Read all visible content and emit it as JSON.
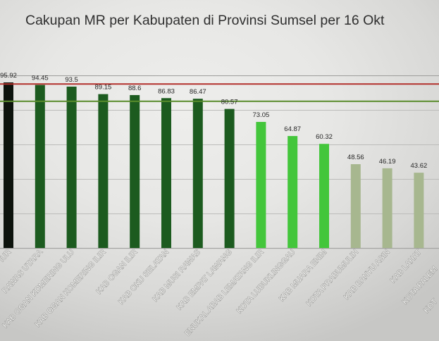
{
  "chart_data": {
    "type": "bar",
    "title": "Cakupan MR per Kabupaten di Provinsi Sumsel per 16 Okt",
    "xlabel": "",
    "ylabel": "",
    "categories": [
      "IUR",
      "RAWAS UTARA",
      "KAB OGAN KOMERING ULU",
      "KAB OGAN KOMERING ILIR",
      "KAB OGAN ILIR",
      "KAB OKU SELATAN",
      "KAB MUSI RAWAS",
      "KAB EMPAT LAWANG",
      "ENUKAL ABAB LEMATANG ILIR",
      "KOTA LUBUKLINGGAU",
      "KAB MUARA ENIM",
      "KOTA PRABUMULIH",
      "KAB BANYU ASIN",
      "KAB LAHAT"
    ],
    "values": [
      95.92,
      94.45,
      93.5,
      89.15,
      88.6,
      86.83,
      86.47,
      80.57,
      73.05,
      64.87,
      60.32,
      48.56,
      46.19,
      43.62
    ],
    "bar_colors": [
      "#0d130d",
      "#1c5b1f",
      "#1c5b1f",
      "#1c5b1f",
      "#1c5b1f",
      "#1c5b1f",
      "#1c5b1f",
      "#1c5b1f",
      "#43c63b",
      "#43c63b",
      "#43c63b",
      "#a7b78f",
      "#a7b78f",
      "#a7b78f"
    ],
    "cut_off_categories": [
      "KOTA PALEM",
      "KOT"
    ],
    "reference_lines": [
      {
        "value": 95,
        "color": "#b3312d"
      },
      {
        "value": 85,
        "color": "#5a8c2c"
      }
    ],
    "ylim": [
      0,
      100
    ],
    "y_gridlines": [
      0,
      20,
      40,
      60,
      80,
      100
    ],
    "grid": true
  }
}
